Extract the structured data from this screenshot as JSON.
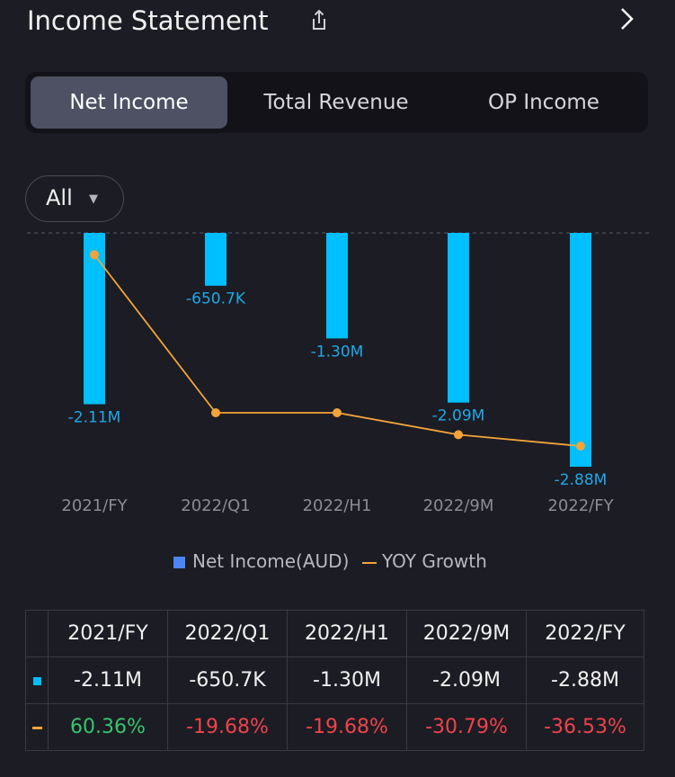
{
  "header": {
    "title": "Income Statement",
    "share_icon": "share-icon",
    "chevron_icon": "chevron-right-icon"
  },
  "tabs": [
    {
      "label": "Net Income",
      "active": true
    },
    {
      "label": "Total Revenue",
      "active": false
    },
    {
      "label": "OP Income",
      "active": false
    }
  ],
  "period_filter": {
    "value": "All",
    "icon": "caret-down-icon"
  },
  "chart_data": {
    "type": "bar",
    "categories": [
      "2021/FY",
      "2022/Q1",
      "2022/H1",
      "2022/9M",
      "2022/FY"
    ],
    "series": [
      {
        "name": "Net Income(AUD)",
        "type": "bar",
        "color": "#00bfff",
        "values": [
          -2.11,
          -0.6507,
          -1.3,
          -2.09,
          -2.88
        ],
        "labels": [
          "-2.11M",
          "-650.7K",
          "-1.30M",
          "-2.09M",
          "-2.88M"
        ]
      },
      {
        "name": "YOY Growth",
        "type": "line",
        "color": "#f2a43a",
        "values": [
          60.36,
          -19.68,
          -19.68,
          -30.79,
          -36.53
        ]
      }
    ],
    "legend": "bottom-center",
    "colors": {
      "tick_label": "#8c8c96",
      "bar_label": "#1fa9e8",
      "zero_line": "#5a5a66"
    }
  },
  "table": {
    "headers": [
      "2021/FY",
      "2022/Q1",
      "2022/H1",
      "2022/9M",
      "2022/FY"
    ],
    "rows": [
      {
        "marker": "net-income-marker",
        "marker_color": "#00bfff",
        "values": [
          "-2.11M",
          "-650.7K",
          "-1.30M",
          "-2.09M",
          "-2.88M"
        ]
      },
      {
        "marker": "yoy-growth-marker",
        "marker_color": "#f2a43a",
        "values": [
          "60.36%",
          "-19.68%",
          "-19.68%",
          "-30.79%",
          "-36.53%"
        ],
        "colors": [
          "#37c56b",
          "#f0434a",
          "#f0434a",
          "#f0434a",
          "#f0434a"
        ]
      }
    ]
  }
}
